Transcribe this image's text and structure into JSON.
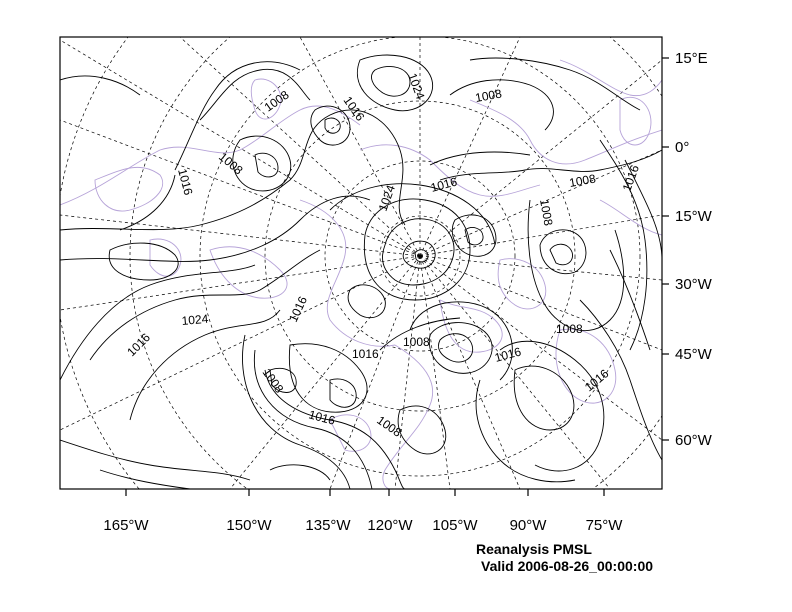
{
  "title": "Reanalysis PMSL",
  "subtitle": "Valid 2006-08-26_00:00:00",
  "colors": {
    "frame": "#000000",
    "contour": "#000000",
    "coastline": "#b6a3d8",
    "graticule": "#000000"
  },
  "axes": {
    "bottom_labels": [
      "165°W",
      "150°W",
      "135°W",
      "120°W",
      "105°W",
      "90°W",
      "75°W"
    ],
    "right_labels": [
      "15°E",
      "0°",
      "15°W",
      "30°W",
      "45°W",
      "60°W"
    ]
  },
  "contour_labels": [
    {
      "text": "1008"
    },
    {
      "text": "1016"
    },
    {
      "text": "1024"
    },
    {
      "text": "1008"
    },
    {
      "text": "1008"
    },
    {
      "text": "1016"
    },
    {
      "text": "1024"
    },
    {
      "text": "1016"
    },
    {
      "text": "1008"
    },
    {
      "text": "1008"
    },
    {
      "text": "1016"
    },
    {
      "text": "1016"
    },
    {
      "text": "1024"
    },
    {
      "text": "1016"
    },
    {
      "text": "1016"
    },
    {
      "text": "1008"
    },
    {
      "text": "1016"
    },
    {
      "text": "1008"
    },
    {
      "text": "1016"
    },
    {
      "text": "1008"
    },
    {
      "text": "1016"
    },
    {
      "text": "1008"
    }
  ]
}
